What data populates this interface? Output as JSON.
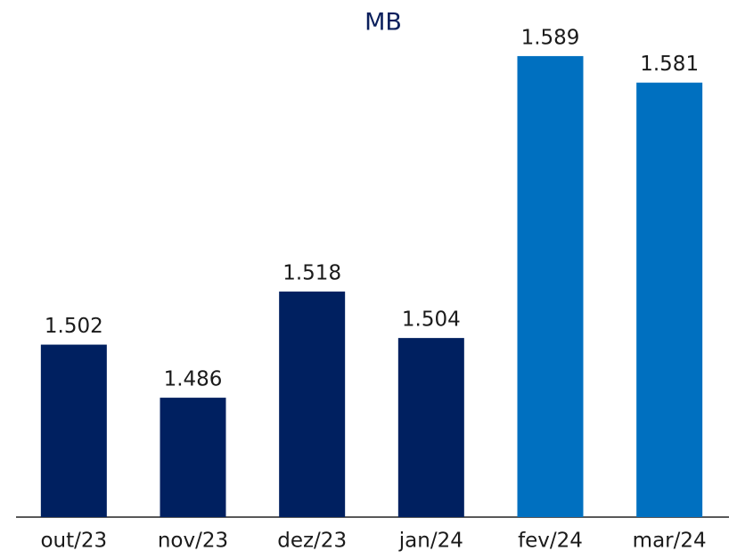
{
  "chart_data": {
    "type": "bar",
    "title": "MB",
    "categories": [
      "out/23",
      "nov/23",
      "dez/23",
      "jan/24",
      "fev/24",
      "mar/24"
    ],
    "values": [
      1.502,
      1.486,
      1.518,
      1.504,
      1.589,
      1.581
    ],
    "colors": [
      "#002060",
      "#002060",
      "#002060",
      "#002060",
      "#0070c0",
      "#0070c0"
    ],
    "ylim": [
      1.45,
      1.6
    ]
  }
}
